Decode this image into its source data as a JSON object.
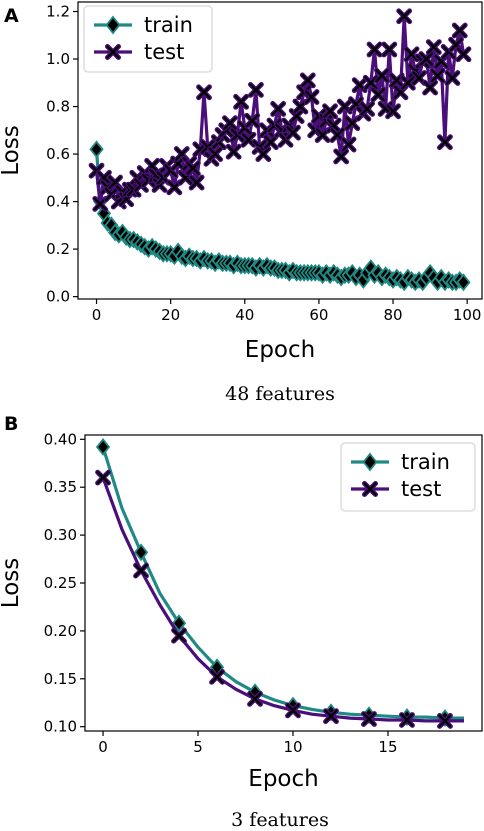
{
  "colors": {
    "train": "#1f8a84",
    "test": "#4a0f78",
    "marker": "#000000"
  },
  "chart_data": [
    {
      "panel": "A",
      "type": "line",
      "caption": "48 features",
      "xlabel": "Epoch",
      "ylabel": "Loss",
      "xlim": [
        -5,
        104
      ],
      "ylim": [
        -0.01,
        1.24
      ],
      "xticks": [
        0,
        20,
        40,
        60,
        80,
        100
      ],
      "yticks": [
        0.0,
        0.2,
        0.4,
        0.6,
        0.8,
        1.0,
        1.2
      ],
      "ytick_labels": [
        "0.0",
        "0.2",
        "0.4",
        "0.6",
        "0.8",
        "1.0",
        "1.2"
      ],
      "legend_position": "upper-left",
      "series": [
        {
          "name": "train",
          "marker": "diamond",
          "x": [
            0,
            1,
            2,
            3,
            4,
            5,
            6,
            7,
            8,
            9,
            10,
            11,
            12,
            13,
            14,
            15,
            16,
            17,
            18,
            19,
            20,
            21,
            22,
            23,
            24,
            25,
            26,
            27,
            28,
            29,
            30,
            31,
            32,
            33,
            34,
            35,
            36,
            37,
            38,
            39,
            40,
            41,
            42,
            43,
            44,
            45,
            46,
            47,
            48,
            49,
            50,
            51,
            52,
            53,
            54,
            55,
            56,
            57,
            58,
            59,
            60,
            61,
            62,
            63,
            64,
            65,
            66,
            67,
            68,
            69,
            70,
            71,
            72,
            73,
            74,
            75,
            76,
            77,
            78,
            79,
            80,
            81,
            82,
            83,
            84,
            85,
            86,
            87,
            88,
            89,
            90,
            91,
            92,
            93,
            94,
            95,
            96,
            97,
            98,
            99
          ],
          "values": [
            0.62,
            0.4,
            0.35,
            0.31,
            0.3,
            0.27,
            0.26,
            0.27,
            0.25,
            0.24,
            0.24,
            0.23,
            0.22,
            0.21,
            0.2,
            0.21,
            0.2,
            0.19,
            0.18,
            0.18,
            0.18,
            0.17,
            0.19,
            0.17,
            0.16,
            0.17,
            0.16,
            0.16,
            0.15,
            0.16,
            0.15,
            0.15,
            0.14,
            0.15,
            0.14,
            0.14,
            0.14,
            0.13,
            0.14,
            0.13,
            0.13,
            0.13,
            0.13,
            0.12,
            0.13,
            0.12,
            0.13,
            0.12,
            0.12,
            0.11,
            0.11,
            0.11,
            0.1,
            0.11,
            0.1,
            0.1,
            0.1,
            0.1,
            0.1,
            0.1,
            0.1,
            0.09,
            0.1,
            0.09,
            0.1,
            0.09,
            0.08,
            0.09,
            0.09,
            0.1,
            0.08,
            0.09,
            0.07,
            0.1,
            0.12,
            0.09,
            0.1,
            0.08,
            0.09,
            0.08,
            0.07,
            0.08,
            0.07,
            0.06,
            0.08,
            0.07,
            0.06,
            0.07,
            0.06,
            0.08,
            0.1,
            0.08,
            0.06,
            0.08,
            0.06,
            0.07,
            0.06,
            0.06,
            0.07,
            0.06
          ]
        },
        {
          "name": "test",
          "marker": "x",
          "x": [
            0,
            1,
            2,
            3,
            4,
            5,
            6,
            7,
            8,
            9,
            10,
            11,
            12,
            13,
            14,
            15,
            16,
            17,
            18,
            19,
            20,
            21,
            22,
            23,
            24,
            25,
            26,
            27,
            28,
            29,
            30,
            31,
            32,
            33,
            34,
            35,
            36,
            37,
            38,
            39,
            40,
            41,
            42,
            43,
            44,
            45,
            46,
            47,
            48,
            49,
            50,
            51,
            52,
            53,
            54,
            55,
            56,
            57,
            58,
            59,
            60,
            61,
            62,
            63,
            64,
            65,
            66,
            67,
            68,
            69,
            70,
            71,
            72,
            73,
            74,
            75,
            76,
            77,
            78,
            79,
            80,
            81,
            82,
            83,
            84,
            85,
            86,
            87,
            88,
            89,
            90,
            91,
            92,
            93,
            94,
            95,
            96,
            97,
            98,
            99
          ],
          "values": [
            0.53,
            0.39,
            0.5,
            0.46,
            0.43,
            0.48,
            0.4,
            0.44,
            0.41,
            0.45,
            0.45,
            0.5,
            0.47,
            0.52,
            0.49,
            0.55,
            0.51,
            0.47,
            0.5,
            0.55,
            0.53,
            0.46,
            0.56,
            0.6,
            0.5,
            0.56,
            0.54,
            0.48,
            0.62,
            0.86,
            0.63,
            0.58,
            0.6,
            0.65,
            0.68,
            0.7,
            0.73,
            0.61,
            0.68,
            0.82,
            0.71,
            0.66,
            0.74,
            0.87,
            0.63,
            0.6,
            0.7,
            0.65,
            0.72,
            0.79,
            0.7,
            0.66,
            0.72,
            0.69,
            0.76,
            0.8,
            0.86,
            0.91,
            0.84,
            0.7,
            0.76,
            0.68,
            0.74,
            0.78,
            0.72,
            0.68,
            0.59,
            0.8,
            0.64,
            0.73,
            0.81,
            0.89,
            0.77,
            0.79,
            0.9,
            1.04,
            0.85,
            0.93,
            0.79,
            1.04,
            0.78,
            0.91,
            0.86,
            1.18,
            0.9,
            1.02,
            0.95,
            0.92,
            0.99,
            1.0,
            0.88,
            1.05,
            0.93,
            0.99,
            0.65,
            1.03,
            0.92,
            1.06,
            1.12,
            1.02
          ]
        }
      ]
    },
    {
      "panel": "B",
      "type": "line",
      "caption": "3 features",
      "xlabel": "Epoch",
      "ylabel": "Loss",
      "xlim": [
        -0.95,
        19.95
      ],
      "ylim": [
        0.0955,
        0.4045
      ],
      "xticks": [
        0,
        5,
        10,
        15
      ],
      "yticks": [
        0.1,
        0.15,
        0.2,
        0.25,
        0.3,
        0.35,
        0.4
      ],
      "ytick_labels": [
        "0.10",
        "0.15",
        "0.20",
        "0.25",
        "0.30",
        "0.35",
        "0.40"
      ],
      "legend_position": "upper-right",
      "series": [
        {
          "name": "train",
          "marker": "diamond",
          "x": [
            0,
            1,
            2,
            3,
            4,
            5,
            6,
            7,
            8,
            9,
            10,
            11,
            12,
            13,
            14,
            15,
            16,
            17,
            18,
            19
          ],
          "values": [
            0.392,
            0.328,
            0.282,
            0.239,
            0.208,
            0.183,
            0.162,
            0.147,
            0.136,
            0.128,
            0.122,
            0.118,
            0.115,
            0.113,
            0.112,
            0.111,
            0.11,
            0.11,
            0.109,
            0.109
          ],
          "markers_at": [
            0,
            2,
            4,
            6,
            8,
            10,
            12,
            14,
            16,
            18
          ]
        },
        {
          "name": "test",
          "marker": "x",
          "x": [
            0,
            1,
            2,
            3,
            4,
            5,
            6,
            7,
            8,
            9,
            10,
            11,
            12,
            13,
            14,
            15,
            16,
            17,
            18,
            19
          ],
          "values": [
            0.36,
            0.306,
            0.263,
            0.227,
            0.195,
            0.171,
            0.152,
            0.139,
            0.129,
            0.122,
            0.117,
            0.113,
            0.111,
            0.109,
            0.108,
            0.107,
            0.107,
            0.106,
            0.106,
            0.106
          ],
          "markers_at": [
            0,
            2,
            4,
            6,
            8,
            10,
            12,
            14,
            16,
            18
          ]
        }
      ]
    }
  ]
}
